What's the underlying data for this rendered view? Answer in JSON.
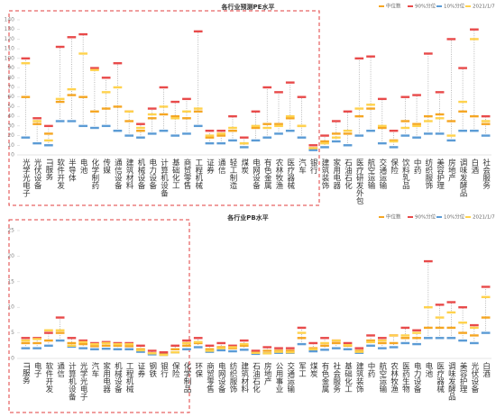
{
  "chart_data": [
    {
      "type": "range-marker",
      "title": "各行业预测PE水平",
      "categories": [
        "光学光电子",
        "光伏设备",
        "IT服务",
        "软件开发",
        "半导体",
        "电池",
        "化学制药",
        "传媒",
        "通信设备",
        "建筑材料",
        "机械设备",
        "电力设备",
        "计算机设备",
        "基础化工",
        "商贸零售",
        "工程机械",
        "证券",
        "通信",
        "轻工制造",
        "煤炭",
        "电网设备",
        "有色金属",
        "农林牧渔",
        "医疗器械",
        "汽车",
        "银行",
        "建筑装饰",
        "家用电器",
        "石油石化",
        "医疗研发外包",
        "航空运输",
        "交通运输",
        "保险",
        "饮料乳品",
        "中药",
        "纺织服饰",
        "美容护理",
        "房地产",
        "调味发酵品",
        "白酒",
        "社会服务"
      ],
      "series": [
        {
          "name": "中位数",
          "color": "#f5a623",
          "values": [
            60,
            32,
            22,
            55,
            62,
            60,
            45,
            48,
            50,
            35,
            25,
            38,
            42,
            40,
            38,
            45,
            18,
            20,
            25,
            12,
            28,
            32,
            32,
            38,
            30,
            7,
            14,
            22,
            22,
            40,
            48,
            28,
            15,
            35,
            32,
            40,
            42,
            35,
            45,
            40,
            32
          ]
        },
        {
          "name": "90%分位",
          "color": "#e84a4a",
          "values": [
            100,
            38,
            30,
            112,
            122,
            125,
            90,
            80,
            95,
            45,
            32,
            48,
            70,
            55,
            58,
            128,
            25,
            25,
            40,
            18,
            45,
            70,
            65,
            75,
            60,
            10,
            20,
            35,
            45,
            100,
            102,
            58,
            25,
            60,
            62,
            105,
            65,
            120,
            90,
            130,
            40
          ]
        },
        {
          "name": "10%分位",
          "color": "#5b9bd5",
          "values": [
            18,
            12,
            10,
            35,
            35,
            30,
            28,
            30,
            25,
            20,
            18,
            22,
            25,
            20,
            22,
            30,
            12,
            12,
            15,
            8,
            15,
            18,
            22,
            25,
            18,
            5,
            8,
            14,
            10,
            20,
            25,
            12,
            8,
            20,
            18,
            22,
            22,
            15,
            25,
            25,
            20
          ]
        },
        {
          "name": "2021/1/7",
          "color": "#ffd24d",
          "values": [
            95,
            35,
            15,
            58,
            68,
            105,
            88,
            65,
            70,
            45,
            28,
            42,
            50,
            38,
            45,
            48,
            20,
            22,
            28,
            12,
            30,
            28,
            30,
            40,
            30,
            7,
            12,
            18,
            25,
            48,
            52,
            30,
            14,
            28,
            30,
            35,
            38,
            20,
            55,
            120,
            35
          ]
        }
      ],
      "ylim": [
        0,
        140
      ],
      "yticks": [
        0,
        10,
        20,
        30,
        40,
        50,
        60,
        70,
        80,
        90,
        100,
        110,
        120,
        130,
        140
      ]
    },
    {
      "type": "range-marker",
      "title": "各行业PB水平",
      "categories": [
        "IT服务",
        "电子",
        "软件开发",
        "通信",
        "计算机设备",
        "光学光电子",
        "汽车",
        "家用电器",
        "机械设备",
        "工程机械",
        "证券",
        "钢铁",
        "银行",
        "保险",
        "化学制品",
        "环保",
        "商贸零售",
        "电网设备",
        "纺织服饰",
        "建筑材料",
        "石油石化",
        "房地产",
        "公用事业",
        "交通运输",
        "军工",
        "煤炭",
        "有色金属",
        "社会服务",
        "基础化工",
        "建筑装饰",
        "中药",
        "航空运输",
        "农林牧渔",
        "医药生物",
        "电力设备",
        "电池",
        "医疗器械",
        "调味发酵品",
        "美容护理",
        "光伏设备",
        "白酒"
      ],
      "series": [
        {
          "name": "中位数",
          "color": "#f5a623",
          "values": [
            3,
            3,
            3.5,
            5,
            3,
            2.8,
            2.4,
            2.5,
            2.5,
            2.4,
            1.8,
            1,
            0.9,
            1.8,
            2.5,
            3,
            1.8,
            2.2,
            2,
            2.5,
            1.2,
            1.5,
            1.5,
            1.5,
            4,
            2,
            2.5,
            3,
            2.5,
            1.5,
            3.5,
            3,
            3,
            4,
            4,
            6,
            6,
            6,
            5,
            4.5,
            8
          ]
        },
        {
          "name": "90%分位",
          "color": "#e84a4a",
          "values": [
            4,
            4,
            5,
            8,
            4,
            3.5,
            3,
            3.2,
            3,
            3,
            2.5,
            1.5,
            1.2,
            2.5,
            3.5,
            4,
            2.5,
            3,
            2.5,
            3.5,
            1.5,
            2.2,
            2,
            2,
            6,
            3,
            4,
            3.5,
            3,
            2,
            4.5,
            4,
            4.5,
            6,
            5.5,
            19,
            10.5,
            11,
            10,
            6.5,
            14
          ]
        },
        {
          "name": "10%分位",
          "color": "#5b9bd5",
          "values": [
            2,
            2,
            2.5,
            3.5,
            2.3,
            2,
            1.8,
            1.9,
            1.8,
            1.8,
            1.3,
            0.8,
            0.7,
            1.2,
            1.8,
            2.2,
            1.3,
            1.6,
            1.4,
            1.7,
            0.9,
            1,
            1.1,
            1.1,
            2.8,
            1.4,
            1.7,
            2,
            1.8,
            1.1,
            2.5,
            2,
            2.2,
            3,
            2.8,
            4,
            4,
            4,
            3.5,
            3,
            5
          ]
        },
        {
          "name": "2021/1/7",
          "color": "#ffd24d",
          "values": [
            3.5,
            3.8,
            5.5,
            5.5,
            2.5,
            3.2,
            2.8,
            3,
            2.8,
            2.8,
            1.6,
            1,
            0.7,
            1.2,
            3,
            3.2,
            1.5,
            2,
            2.2,
            2.8,
            1.1,
            1,
            1.3,
            1.2,
            5,
            1.8,
            3,
            3.5,
            2.6,
            1.3,
            3.2,
            3.5,
            4.5,
            4.5,
            5,
            10,
            8,
            9,
            7,
            6,
            12
          ]
        }
      ],
      "ylim": [
        0,
        25
      ],
      "yticks": [
        0,
        5,
        10,
        15,
        20,
        25
      ]
    }
  ]
}
